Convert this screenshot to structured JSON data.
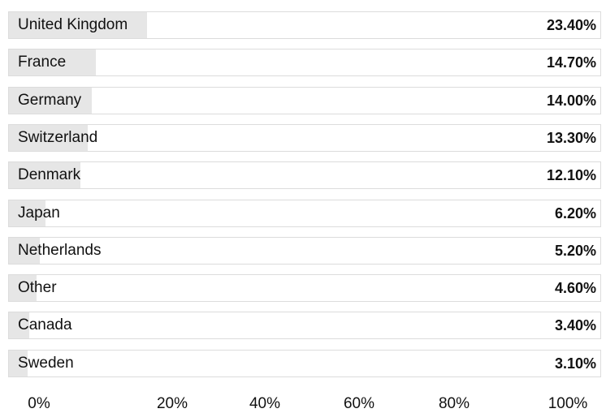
{
  "chart_data": {
    "type": "bar",
    "orientation": "horizontal",
    "categories": [
      "United Kingdom",
      "France",
      "Germany",
      "Switzerland",
      "Denmark",
      "Japan",
      "Netherlands",
      "Other",
      "Canada",
      "Sweden"
    ],
    "values": [
      23.4,
      14.7,
      14.0,
      13.3,
      12.1,
      6.2,
      5.2,
      4.6,
      3.4,
      3.1
    ],
    "value_labels": [
      "23.40%",
      "14.70%",
      "14.00%",
      "13.30%",
      "12.10%",
      "6.20%",
      "5.20%",
      "4.60%",
      "3.40%",
      "3.10%"
    ],
    "x_ticks": [
      "0%",
      "20%",
      "40%",
      "60%",
      "80%",
      "100%"
    ],
    "x_tick_values": [
      0,
      20,
      40,
      60,
      80,
      100
    ],
    "xlim": [
      0,
      100
    ],
    "title": "",
    "xlabel": "",
    "ylabel": "",
    "grid": false,
    "legend": "none",
    "colors": {
      "fill": "#e6e6e6",
      "row_border": "#dcdcdc",
      "text": "#111111"
    }
  }
}
